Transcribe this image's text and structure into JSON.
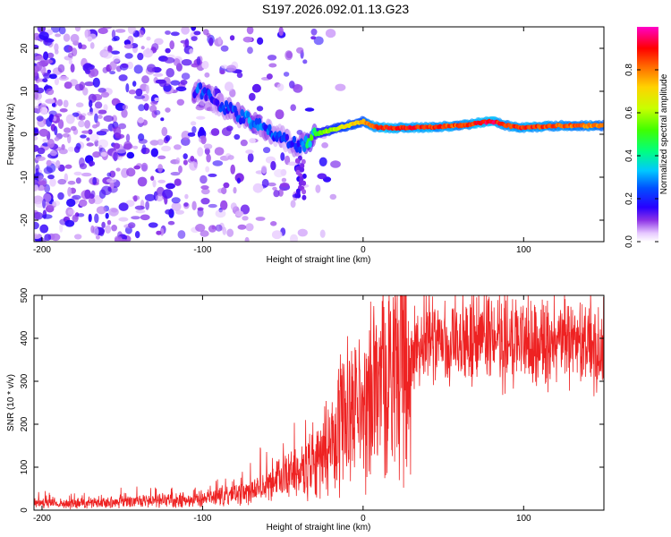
{
  "title": "S197.2026.092.01.13.G23",
  "colors": {
    "snr_line": "#ee2222",
    "colormap": [
      "#ffffff",
      "#c8b4f4",
      "#7a1ee0",
      "#3a00d8",
      "#0000ff",
      "#00c8f0",
      "#00ff80",
      "#a0ff00",
      "#ffff00",
      "#ff9000",
      "#ff0000",
      "#ff00a0",
      "#ff50ff"
    ]
  },
  "chart_data": [
    {
      "type": "heatmap",
      "xlabel": "Height of straight line (km)",
      "ylabel": "Frequency (Hz)",
      "xlim": [
        -205,
        150
      ],
      "ylim": [
        -25,
        25
      ],
      "xticks": [
        -200,
        -100,
        0,
        100
      ],
      "yticks": [
        -20,
        -10,
        0,
        10,
        20
      ],
      "ridge": {
        "x": [
          -100,
          -90,
          -80,
          -70,
          -60,
          -50,
          -40,
          -35,
          -30,
          -20,
          -10,
          0,
          5,
          10,
          30,
          60,
          80,
          90,
          100,
          120,
          150
        ],
        "frequency": [
          10,
          7,
          5,
          3,
          1,
          -1,
          -3,
          -2,
          0,
          1,
          2,
          3,
          2,
          1.5,
          1.5,
          2,
          3,
          2,
          1.5,
          2,
          2
        ],
        "amplitude": [
          0.25,
          0.2,
          0.25,
          0.3,
          0.25,
          0.2,
          0.25,
          0.45,
          0.5,
          0.6,
          0.7,
          0.75,
          0.85,
          0.9,
          0.9,
          0.85,
          0.95,
          0.85,
          0.9,
          0.85,
          0.8
        ]
      },
      "colorbar": {
        "label": "Normalized spectral amplitude",
        "range": [
          0,
          1
        ],
        "ticks": [
          "0.0",
          "0.2",
          "0.4",
          "0.6",
          "0.8"
        ]
      }
    },
    {
      "type": "line",
      "xlabel": "Height of straight line (km)",
      "ylabel": "SNR (10 * v/v)",
      "xlim": [
        -205,
        150
      ],
      "ylim": [
        0,
        500
      ],
      "xticks": [
        -200,
        -100,
        0,
        100
      ],
      "yticks": [
        0,
        100,
        200,
        300,
        400,
        500
      ],
      "series": [
        {
          "name": "SNR",
          "x": [
            -205,
            -180,
            -160,
            -140,
            -120,
            -100,
            -90,
            -80,
            -70,
            -60,
            -50,
            -40,
            -30,
            -25,
            -20,
            -10,
            0,
            10,
            20,
            30,
            40,
            60,
            80,
            100,
            120,
            135,
            150
          ],
          "y": [
            15,
            15,
            18,
            20,
            22,
            25,
            28,
            35,
            45,
            55,
            70,
            90,
            110,
            140,
            170,
            220,
            250,
            290,
            340,
            370,
            385,
            390,
            395,
            385,
            380,
            375,
            370
          ]
        }
      ]
    }
  ]
}
